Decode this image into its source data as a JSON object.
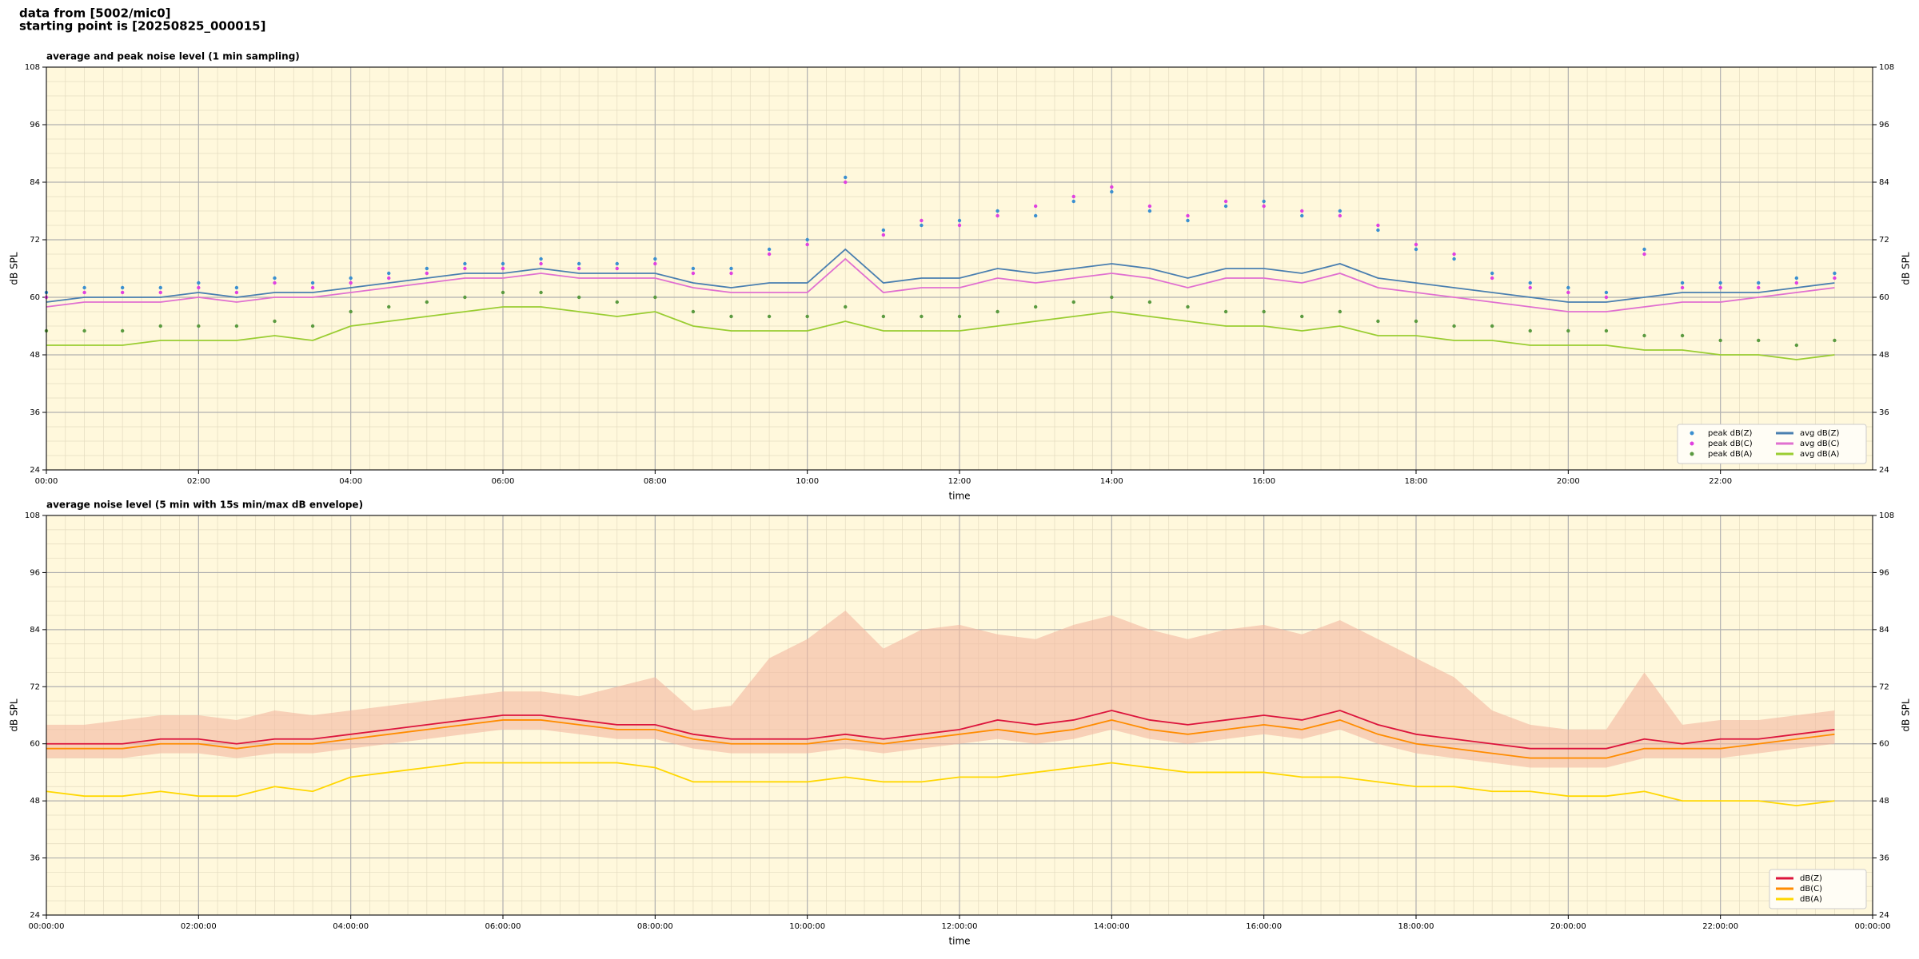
{
  "header": {
    "lines": [
      "data from [5002/mic0]",
      "starting point is [20250825_000015]"
    ]
  },
  "chart_data": [
    {
      "type": "line",
      "title": "average and peak noise level (1 min sampling)",
      "xlabel": "time",
      "ylabel": "dB SPL",
      "x": [
        0,
        0.5,
        1,
        1.5,
        2,
        2.5,
        3,
        3.5,
        4,
        4.5,
        5,
        5.5,
        6,
        6.5,
        7,
        7.5,
        8,
        8.5,
        9,
        9.5,
        10,
        10.5,
        11,
        11.5,
        12,
        12.5,
        13,
        13.5,
        14,
        14.5,
        15,
        15.5,
        16,
        16.5,
        17,
        17.5,
        18,
        18.5,
        19,
        19.5,
        20,
        20.5,
        21,
        21.5,
        22,
        22.5,
        23,
        23.5
      ],
      "xlim": [
        0,
        24
      ],
      "xticks": [
        {
          "value": 0,
          "label": "00:00"
        },
        {
          "value": 2,
          "label": "02:00"
        },
        {
          "value": 4,
          "label": "04:00"
        },
        {
          "value": 6,
          "label": "06:00"
        },
        {
          "value": 8,
          "label": "08:00"
        },
        {
          "value": 10,
          "label": "10:00"
        },
        {
          "value": 12,
          "label": "12:00"
        },
        {
          "value": 14,
          "label": "14:00"
        },
        {
          "value": 16,
          "label": "16:00"
        },
        {
          "value": 18,
          "label": "18:00"
        },
        {
          "value": 20,
          "label": "20:00"
        },
        {
          "value": 22,
          "label": "22:00"
        }
      ],
      "ylim": [
        24,
        108
      ],
      "yticks": [
        24,
        36,
        48,
        60,
        72,
        84,
        96,
        108
      ],
      "grid": true,
      "legend": "lower right",
      "series": [
        {
          "name": "peak dB(Z)",
          "type": "scatter",
          "color": "#3a8fd0",
          "values": [
            61,
            62,
            62,
            62,
            63,
            62,
            64,
            63,
            64,
            65,
            66,
            67,
            67,
            68,
            67,
            67,
            68,
            66,
            66,
            70,
            72,
            85,
            74,
            75,
            76,
            78,
            77,
            80,
            82,
            78,
            76,
            79,
            80,
            77,
            78,
            74,
            70,
            68,
            65,
            63,
            62,
            61,
            70,
            63,
            63,
            63,
            64,
            65
          ]
        },
        {
          "name": "peak dB(C)",
          "type": "scatter",
          "color": "#e040e0",
          "values": [
            60,
            61,
            61,
            61,
            62,
            61,
            63,
            62,
            63,
            64,
            65,
            66,
            66,
            67,
            66,
            66,
            67,
            65,
            65,
            69,
            71,
            84,
            73,
            76,
            75,
            77,
            79,
            81,
            83,
            79,
            77,
            80,
            79,
            78,
            77,
            75,
            71,
            69,
            64,
            62,
            61,
            60,
            69,
            62,
            62,
            62,
            63,
            64
          ]
        },
        {
          "name": "peak dB(A)",
          "type": "scatter",
          "color": "#5a9a40",
          "values": [
            53,
            53,
            53,
            54,
            54,
            54,
            55,
            54,
            57,
            58,
            59,
            60,
            61,
            61,
            60,
            59,
            60,
            57,
            56,
            56,
            56,
            58,
            56,
            56,
            56,
            57,
            58,
            59,
            60,
            59,
            58,
            57,
            57,
            56,
            57,
            55,
            55,
            54,
            54,
            53,
            53,
            53,
            52,
            52,
            51,
            51,
            50,
            51
          ]
        },
        {
          "name": "avg dB(Z)",
          "type": "line",
          "color": "#4a7fb0",
          "values": [
            59,
            60,
            60,
            60,
            61,
            60,
            61,
            61,
            62,
            63,
            64,
            65,
            65,
            66,
            65,
            65,
            65,
            63,
            62,
            63,
            63,
            70,
            63,
            64,
            64,
            66,
            65,
            66,
            67,
            66,
            64,
            66,
            66,
            65,
            67,
            64,
            63,
            62,
            61,
            60,
            59,
            59,
            60,
            61,
            61,
            61,
            62,
            63
          ]
        },
        {
          "name": "avg dB(C)",
          "type": "line",
          "color": "#e070d0",
          "values": [
            58,
            59,
            59,
            59,
            60,
            59,
            60,
            60,
            61,
            62,
            63,
            64,
            64,
            65,
            64,
            64,
            64,
            62,
            61,
            61,
            61,
            68,
            61,
            62,
            62,
            64,
            63,
            64,
            65,
            64,
            62,
            64,
            64,
            63,
            65,
            62,
            61,
            60,
            59,
            58,
            57,
            57,
            58,
            59,
            59,
            60,
            61,
            62
          ]
        },
        {
          "name": "avg dB(A)",
          "type": "line",
          "color": "#9acd32",
          "values": [
            50,
            50,
            50,
            51,
            51,
            51,
            52,
            51,
            54,
            55,
            56,
            57,
            58,
            58,
            57,
            56,
            57,
            54,
            53,
            53,
            53,
            55,
            53,
            53,
            53,
            54,
            55,
            56,
            57,
            56,
            55,
            54,
            54,
            53,
            54,
            52,
            52,
            51,
            51,
            50,
            50,
            50,
            49,
            49,
            48,
            48,
            47,
            48
          ]
        }
      ]
    },
    {
      "type": "line",
      "title": "average noise level (5 min with 15s min/max dB envelope)",
      "xlabel": "time",
      "ylabel": "dB SPL",
      "x": [
        0,
        0.5,
        1,
        1.5,
        2,
        2.5,
        3,
        3.5,
        4,
        4.5,
        5,
        5.5,
        6,
        6.5,
        7,
        7.5,
        8,
        8.5,
        9,
        9.5,
        10,
        10.5,
        11,
        11.5,
        12,
        12.5,
        13,
        13.5,
        14,
        14.5,
        15,
        15.5,
        16,
        16.5,
        17,
        17.5,
        18,
        18.5,
        19,
        19.5,
        20,
        20.5,
        21,
        21.5,
        22,
        22.5,
        23,
        23.5
      ],
      "xlim": [
        0,
        24
      ],
      "xticks": [
        {
          "value": 0,
          "label": "00:00:00"
        },
        {
          "value": 2,
          "label": "02:00:00"
        },
        {
          "value": 4,
          "label": "04:00:00"
        },
        {
          "value": 6,
          "label": "06:00:00"
        },
        {
          "value": 8,
          "label": "08:00:00"
        },
        {
          "value": 10,
          "label": "10:00:00"
        },
        {
          "value": 12,
          "label": "12:00:00"
        },
        {
          "value": 14,
          "label": "14:00:00"
        },
        {
          "value": 16,
          "label": "16:00:00"
        },
        {
          "value": 18,
          "label": "18:00:00"
        },
        {
          "value": 20,
          "label": "20:00:00"
        },
        {
          "value": 22,
          "label": "22:00:00"
        },
        {
          "value": 24,
          "label": "00:00:00"
        }
      ],
      "ylim": [
        24,
        108
      ],
      "yticks": [
        24,
        36,
        48,
        60,
        72,
        84,
        96,
        108
      ],
      "grid": true,
      "legend": "lower right",
      "band": {
        "color": "#f4b8a0",
        "low": [
          57,
          57,
          57,
          58,
          58,
          57,
          58,
          58,
          59,
          60,
          61,
          62,
          63,
          63,
          62,
          61,
          61,
          59,
          58,
          58,
          58,
          59,
          58,
          59,
          60,
          61,
          60,
          61,
          63,
          61,
          60,
          61,
          62,
          61,
          63,
          60,
          58,
          57,
          56,
          55,
          55,
          55,
          57,
          57,
          57,
          58,
          59,
          60
        ],
        "high": [
          64,
          64,
          65,
          66,
          66,
          65,
          67,
          66,
          67,
          68,
          69,
          70,
          71,
          71,
          70,
          72,
          74,
          67,
          68,
          78,
          82,
          88,
          80,
          84,
          85,
          83,
          82,
          85,
          87,
          84,
          82,
          84,
          85,
          83,
          86,
          82,
          78,
          74,
          67,
          64,
          63,
          63,
          75,
          64,
          65,
          65,
          66,
          67
        ]
      },
      "series": [
        {
          "name": "dB(Z)",
          "type": "line",
          "color": "#dc143c",
          "values": [
            60,
            60,
            60,
            61,
            61,
            60,
            61,
            61,
            62,
            63,
            64,
            65,
            66,
            66,
            65,
            64,
            64,
            62,
            61,
            61,
            61,
            62,
            61,
            62,
            63,
            65,
            64,
            65,
            67,
            65,
            64,
            65,
            66,
            65,
            67,
            64,
            62,
            61,
            60,
            59,
            59,
            59,
            61,
            60,
            61,
            61,
            62,
            63
          ]
        },
        {
          "name": "dB(C)",
          "type": "line",
          "color": "#ff8c00",
          "values": [
            59,
            59,
            59,
            60,
            60,
            59,
            60,
            60,
            61,
            62,
            63,
            64,
            65,
            65,
            64,
            63,
            63,
            61,
            60,
            60,
            60,
            61,
            60,
            61,
            62,
            63,
            62,
            63,
            65,
            63,
            62,
            63,
            64,
            63,
            65,
            62,
            60,
            59,
            58,
            57,
            57,
            57,
            59,
            59,
            59,
            60,
            61,
            62
          ]
        },
        {
          "name": "dB(A)",
          "type": "line",
          "color": "#ffd700",
          "values": [
            50,
            49,
            49,
            50,
            49,
            49,
            51,
            50,
            53,
            54,
            55,
            56,
            56,
            56,
            56,
            56,
            55,
            52,
            52,
            52,
            52,
            53,
            52,
            52,
            53,
            53,
            54,
            55,
            56,
            55,
            54,
            54,
            54,
            53,
            53,
            52,
            51,
            51,
            50,
            50,
            49,
            49,
            50,
            48,
            48,
            48,
            47,
            48
          ]
        }
      ]
    }
  ]
}
